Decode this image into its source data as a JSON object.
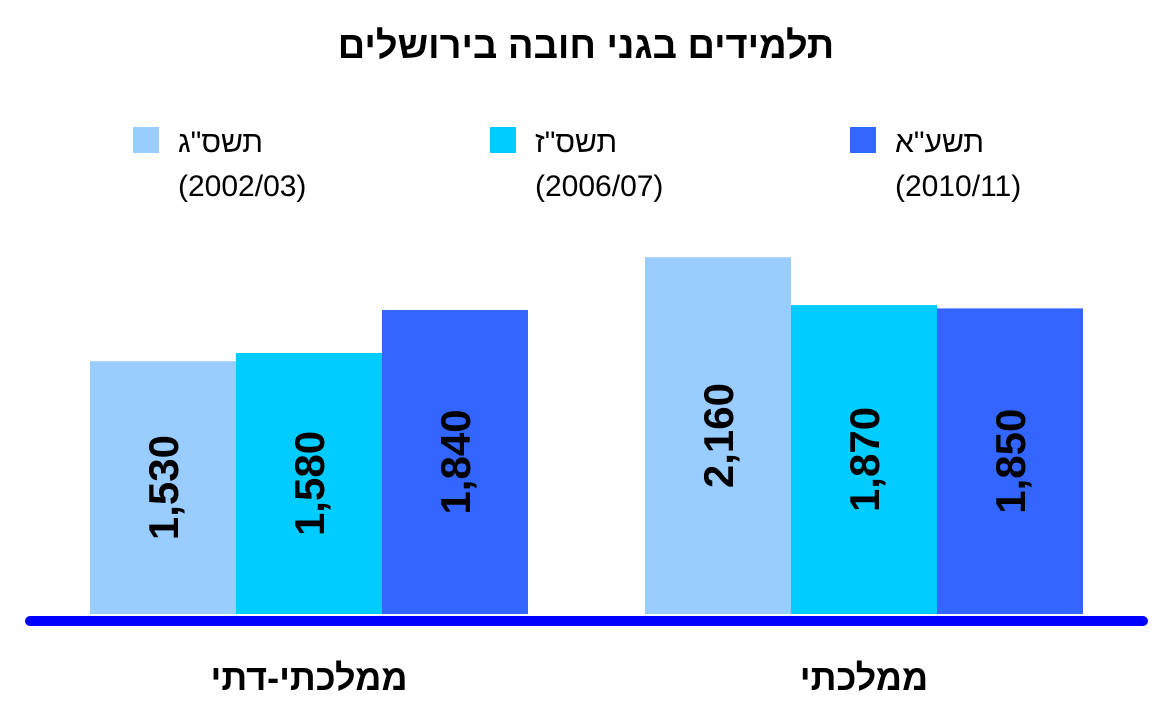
{
  "chart_data": {
    "type": "bar",
    "title": "תלמידים בגני חובה בירושלים",
    "categories": [
      "ממלכתי",
      "ממלכתי-דתי"
    ],
    "series": [
      {
        "name": "תשס\"ג",
        "period": "(2002/03)",
        "color": "#99CCFF",
        "values": [
          2160,
          1530
        ]
      },
      {
        "name": "תשס\"ז",
        "period": "(2006/07)",
        "color": "#00CCFF",
        "values": [
          1870,
          1580
        ]
      },
      {
        "name": "תשע\"א",
        "period": "(2010/11)",
        "color": "#3366FF",
        "values": [
          1850,
          1840
        ]
      }
    ],
    "data_labels": [
      [
        "2,160",
        "1,530"
      ],
      [
        "1,870",
        "1,580"
      ],
      [
        "1,850",
        "1,840"
      ]
    ],
    "ylim": [
      0,
      2500
    ],
    "axis_color": "#0000FF",
    "grid": false,
    "legend_position": "top"
  }
}
